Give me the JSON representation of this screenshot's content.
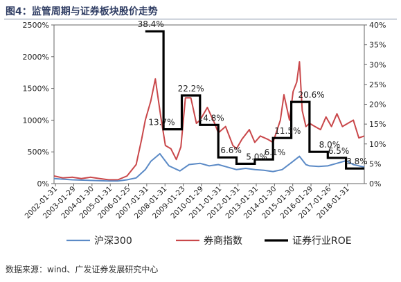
{
  "title": "图4：监管周期与证券板块股价走势",
  "source": "数据来源：wind、广发证券发展研究中心",
  "colors": {
    "hs300": "#5b8ac6",
    "brokers": "#c9474a",
    "roe": "#000000",
    "frame": "#666666"
  },
  "chart_data": {
    "type": "line",
    "left_axis": {
      "ticks": [
        "0%",
        "500%",
        "1000%",
        "1500%",
        "2000%",
        "2500%"
      ],
      "ylim": [
        0,
        2500
      ]
    },
    "right_axis": {
      "ticks": [
        "0%",
        "5%",
        "10%",
        "15%",
        "20%",
        "25%",
        "30%",
        "35%",
        "40%"
      ],
      "ylim": [
        0,
        40
      ]
    },
    "x_start": 2002.0,
    "x_end": 2019.0,
    "x_ticks": [
      "2002-01-31",
      "2003-01-29",
      "2004-01-30",
      "2005-01-31",
      "2006-01-25",
      "2007-01-31",
      "2008-01-31",
      "2009-01-23",
      "2010-01-29",
      "2011-01-31",
      "2012-01-31",
      "2013-01-31",
      "2014-01-30",
      "2015-01-30",
      "2016-01-29",
      "2017-01-26",
      "2018-01-31"
    ],
    "legend": [
      {
        "key": "hs300",
        "label": "沪深300"
      },
      {
        "key": "brokers",
        "label": "券商指数"
      },
      {
        "key": "roe",
        "label": "证券行业ROE"
      }
    ],
    "series": {
      "hs300": {
        "name": "沪深300",
        "x": [
          2002.0,
          2003.0,
          2004.0,
          2005.0,
          2005.5,
          2006.0,
          2006.5,
          2007.0,
          2007.3,
          2007.8,
          2008.3,
          2008.9,
          2009.4,
          2010.0,
          2010.5,
          2011.0,
          2011.5,
          2012.0,
          2012.5,
          2013.0,
          2013.5,
          2014.0,
          2014.5,
          2015.0,
          2015.45,
          2015.8,
          2016.0,
          2016.5,
          2017.0,
          2017.5,
          2018.0,
          2018.4,
          2019.0
        ],
        "y": [
          80,
          60,
          50,
          40,
          40,
          60,
          90,
          220,
          350,
          470,
          280,
          200,
          300,
          320,
          280,
          300,
          260,
          220,
          240,
          220,
          210,
          190,
          220,
          330,
          430,
          300,
          280,
          270,
          280,
          320,
          360,
          300,
          260
        ]
      },
      "brokers": {
        "name": "券商指数",
        "x": [
          2002.0,
          2002.5,
          2003.0,
          2003.5,
          2004.0,
          2004.5,
          2005.0,
          2005.5,
          2006.0,
          2006.5,
          2006.8,
          2007.0,
          2007.3,
          2007.55,
          2007.85,
          2008.1,
          2008.4,
          2008.7,
          2008.95,
          2009.2,
          2009.5,
          2009.8,
          2010.0,
          2010.4,
          2010.8,
          2011.0,
          2011.4,
          2011.8,
          2012.0,
          2012.3,
          2012.7,
          2013.0,
          2013.3,
          2013.7,
          2014.0,
          2014.4,
          2014.6,
          2014.9,
          2015.1,
          2015.3,
          2015.45,
          2015.6,
          2015.8,
          2016.0,
          2016.3,
          2016.6,
          2016.9,
          2017.2,
          2017.5,
          2017.8,
          2018.1,
          2018.4,
          2018.7,
          2019.0
        ],
        "y": [
          120,
          90,
          100,
          80,
          100,
          80,
          60,
          60,
          120,
          300,
          700,
          1000,
          1300,
          1650,
          1050,
          600,
          550,
          380,
          580,
          1350,
          1350,
          950,
          1000,
          1200,
          950,
          800,
          900,
          600,
          550,
          700,
          850,
          650,
          750,
          700,
          650,
          1000,
          1400,
          1000,
          1450,
          1600,
          1920,
          1150,
          900,
          950,
          900,
          850,
          1050,
          900,
          1100,
          900,
          950,
          1000,
          720,
          750
        ]
      },
      "roe": {
        "name": "证券行业ROE",
        "x": [
          2007.0,
          2008.0,
          2008.0,
          2009.0,
          2009.0,
          2010.0,
          2010.0,
          2011.0,
          2011.0,
          2012.0,
          2012.0,
          2013.0,
          2013.0,
          2014.0,
          2014.0,
          2015.0,
          2015.0,
          2016.0,
          2016.0,
          2017.0,
          2017.0,
          2018.0,
          2018.0,
          2019.0
        ],
        "y": [
          38.4,
          38.4,
          13.7,
          13.7,
          22.2,
          22.2,
          14.8,
          14.8,
          6.6,
          6.6,
          5.0,
          5.0,
          6.1,
          6.1,
          11.5,
          11.5,
          20.6,
          20.6,
          8.0,
          8.0,
          6.5,
          6.5,
          3.8,
          3.8
        ]
      }
    },
    "annotations": [
      {
        "text": "38.4%",
        "x": 2007.3,
        "y": 38.4
      },
      {
        "text": "13.7%",
        "x": 2007.9,
        "y": 13.7
      },
      {
        "text": "22.2%",
        "x": 2009.5,
        "y": 22.2
      },
      {
        "text": "14.8%",
        "x": 2010.6,
        "y": 14.8
      },
      {
        "text": "6.6%",
        "x": 2011.7,
        "y": 6.6
      },
      {
        "text": "5.0%",
        "x": 2013.1,
        "y": 5.0
      },
      {
        "text": "6.1%",
        "x": 2014.1,
        "y": 6.1
      },
      {
        "text": "11.5%",
        "x": 2014.8,
        "y": 11.5
      },
      {
        "text": "20.6%",
        "x": 2016.1,
        "y": 20.6
      },
      {
        "text": "8.0%",
        "x": 2017.1,
        "y": 8.0
      },
      {
        "text": "6.5%",
        "x": 2017.6,
        "y": 6.5
      },
      {
        "text": "3.8%",
        "x": 2018.6,
        "y": 3.8
      }
    ]
  }
}
